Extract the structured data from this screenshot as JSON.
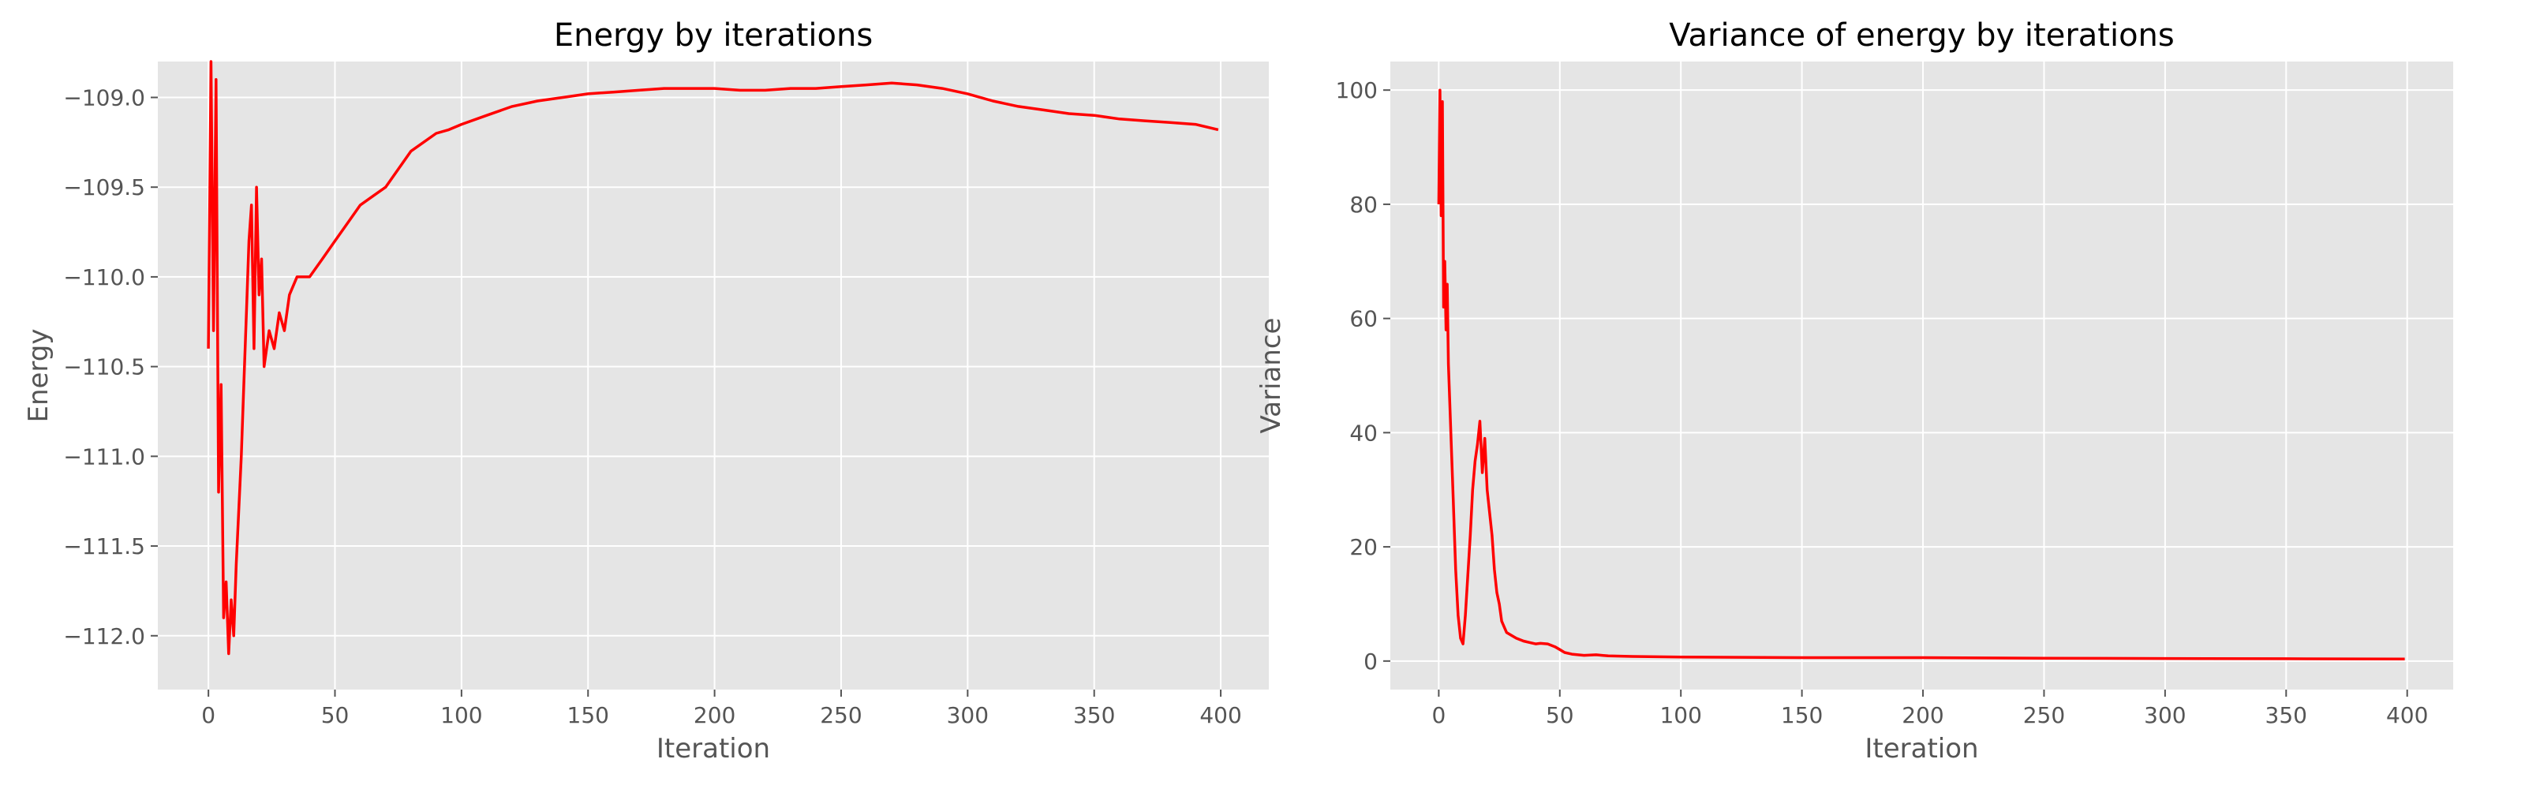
{
  "chart_data": [
    {
      "type": "line",
      "title": "Energy by iterations",
      "xlabel": "Iteration",
      "ylabel": "Energy",
      "xlim": [
        -20,
        419
      ],
      "ylim": [
        -112.3,
        -108.8
      ],
      "xticks": [
        0,
        50,
        100,
        150,
        200,
        250,
        300,
        350,
        400
      ],
      "xtick_labels": [
        "0",
        "50",
        "100",
        "150",
        "200",
        "250",
        "300",
        "350",
        "400"
      ],
      "yticks": [
        -112.0,
        -111.5,
        -111.0,
        -110.5,
        -110.0,
        -109.5,
        -109.0
      ],
      "ytick_labels": [
        "−112.0",
        "−111.5",
        "−111.0",
        "−110.5",
        "−110.0",
        "−109.5",
        "−109.0"
      ],
      "grid": true,
      "series": [
        {
          "color": "#ff0000",
          "x": [
            0,
            1,
            2,
            3,
            4,
            5,
            6,
            7,
            8,
            9,
            10,
            11,
            12,
            13,
            14,
            15,
            16,
            17,
            18,
            19,
            20,
            21,
            22,
            24,
            26,
            28,
            30,
            32,
            35,
            40,
            45,
            50,
            55,
            60,
            65,
            70,
            75,
            80,
            85,
            90,
            95,
            100,
            110,
            120,
            130,
            140,
            150,
            160,
            170,
            180,
            190,
            200,
            210,
            220,
            230,
            240,
            250,
            260,
            270,
            280,
            290,
            300,
            310,
            320,
            330,
            340,
            350,
            360,
            370,
            380,
            390,
            399
          ],
          "y": [
            -110.4,
            -108.8,
            -110.3,
            -108.9,
            -111.2,
            -110.6,
            -111.9,
            -111.7,
            -112.1,
            -111.8,
            -112.0,
            -111.6,
            -111.3,
            -111.0,
            -110.6,
            -110.2,
            -109.8,
            -109.6,
            -110.4,
            -109.5,
            -110.1,
            -109.9,
            -110.5,
            -110.3,
            -110.4,
            -110.2,
            -110.3,
            -110.1,
            -110.0,
            -110.0,
            -109.9,
            -109.8,
            -109.7,
            -109.6,
            -109.55,
            -109.5,
            -109.4,
            -109.3,
            -109.25,
            -109.2,
            -109.18,
            -109.15,
            -109.1,
            -109.05,
            -109.02,
            -109.0,
            -108.98,
            -108.97,
            -108.96,
            -108.95,
            -108.95,
            -108.95,
            -108.96,
            -108.96,
            -108.95,
            -108.95,
            -108.94,
            -108.93,
            -108.92,
            -108.93,
            -108.95,
            -108.98,
            -109.02,
            -109.05,
            -109.07,
            -109.09,
            -109.1,
            -109.12,
            -109.13,
            -109.14,
            -109.15,
            -109.18
          ]
        }
      ]
    },
    {
      "type": "line",
      "title": "Variance of energy by iterations",
      "xlabel": "Iteration",
      "ylabel": "Variance",
      "xlim": [
        -20,
        419
      ],
      "ylim": [
        -5,
        105
      ],
      "xticks": [
        0,
        50,
        100,
        150,
        200,
        250,
        300,
        350,
        400
      ],
      "xtick_labels": [
        "0",
        "50",
        "100",
        "150",
        "200",
        "250",
        "300",
        "350",
        "400"
      ],
      "yticks": [
        0,
        20,
        40,
        60,
        80,
        100
      ],
      "ytick_labels": [
        "0",
        "20",
        "40",
        "60",
        "80",
        "100"
      ],
      "grid": true,
      "series": [
        {
          "color": "#ff0000",
          "x": [
            0,
            0.5,
            1,
            1.5,
            2,
            2.5,
            3,
            3.5,
            4,
            5,
            6,
            7,
            8,
            9,
            10,
            11,
            12,
            13,
            14,
            15,
            16,
            17,
            18,
            19,
            20,
            21,
            22,
            23,
            24,
            25,
            26,
            27,
            28,
            30,
            32,
            35,
            38,
            40,
            42,
            45,
            48,
            50,
            52,
            55,
            60,
            65,
            70,
            80,
            100,
            150,
            200,
            250,
            300,
            350,
            399
          ],
          "y": [
            80,
            100,
            78,
            98,
            62,
            70,
            58,
            66,
            52,
            40,
            28,
            16,
            8,
            4,
            3,
            8,
            15,
            22,
            30,
            35,
            38,
            42,
            33,
            39,
            30,
            26,
            22,
            16,
            12,
            10,
            7,
            6,
            5,
            4.5,
            4,
            3.5,
            3.2,
            3,
            3.1,
            3,
            2.5,
            2,
            1.5,
            1.2,
            1.0,
            1.1,
            0.9,
            0.8,
            0.7,
            0.6,
            0.6,
            0.5,
            0.45,
            0.4,
            0.35
          ]
        }
      ]
    }
  ]
}
